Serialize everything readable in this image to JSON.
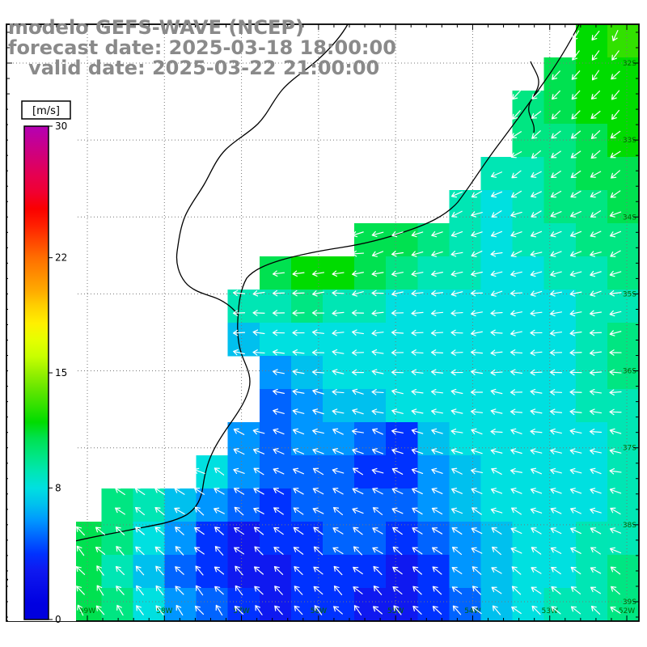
{
  "header": {
    "title": "modelo GEFS-WAVE (NCEP)",
    "forecast_line": "forecast date: 2025-03-18 18:00:00",
    "valid_line": "   valid date: 2025-03-22 21:00:00",
    "text_color": "#8a8a8a"
  },
  "colorbar": {
    "label": "[m/s]",
    "min": 0,
    "max": 30,
    "tick_values": [
      30,
      22,
      15,
      8,
      0
    ],
    "stops": [
      [
        30,
        "#b400b4"
      ],
      [
        28.5,
        "#cd0082"
      ],
      [
        27,
        "#e60050"
      ],
      [
        26,
        "#f00032"
      ],
      [
        25,
        "#fa0000"
      ],
      [
        24,
        "#ff1e00"
      ],
      [
        23,
        "#ff4600"
      ],
      [
        22,
        "#ff6e00"
      ],
      [
        21,
        "#ff8c00"
      ],
      [
        20,
        "#ffaa00"
      ],
      [
        19,
        "#ffd200"
      ],
      [
        18,
        "#fff000"
      ],
      [
        17,
        "#e6ff00"
      ],
      [
        16,
        "#c8ff00"
      ],
      [
        15,
        "#96f000"
      ],
      [
        14,
        "#64e600"
      ],
      [
        13,
        "#32e100"
      ],
      [
        12,
        "#00dc00"
      ],
      [
        11,
        "#00e150"
      ],
      [
        10,
        "#00e682"
      ],
      [
        9,
        "#00e6b4"
      ],
      [
        8,
        "#00e0e0"
      ],
      [
        7,
        "#00c0ee"
      ],
      [
        6,
        "#0096ff"
      ],
      [
        5,
        "#0064ff"
      ],
      [
        4,
        "#0032ff"
      ],
      [
        3,
        "#0f19f0"
      ],
      [
        1,
        "#0000e1"
      ],
      [
        0,
        "#0000dc"
      ]
    ]
  },
  "axes": {
    "lat_labels": [
      "32S",
      "33S",
      "34S",
      "35S",
      "36S",
      "37S",
      "38S",
      "39S"
    ],
    "lon_labels": [
      "59W",
      "58W",
      "57W",
      "56W",
      "55W",
      "54W",
      "53W",
      "52W"
    ],
    "label_color": "#006600"
  },
  "chart_data": {
    "type": "heatmap",
    "title": "modelo GEFS-WAVE (NCEP)",
    "field": "wind speed with direction arrows",
    "units": "m/s",
    "value_range": [
      0,
      30
    ],
    "grid_cols": 20,
    "grid_rows": 18,
    "values": [
      [
        null,
        null,
        null,
        null,
        null,
        null,
        null,
        null,
        null,
        null,
        null,
        null,
        null,
        null,
        null,
        null,
        null,
        null,
        12,
        13
      ],
      [
        null,
        null,
        null,
        null,
        null,
        null,
        null,
        null,
        null,
        null,
        null,
        null,
        null,
        null,
        null,
        null,
        null,
        11,
        12,
        12
      ],
      [
        null,
        null,
        null,
        null,
        null,
        null,
        null,
        null,
        null,
        null,
        null,
        null,
        null,
        null,
        null,
        null,
        10,
        11,
        12,
        12
      ],
      [
        null,
        null,
        null,
        null,
        null,
        null,
        null,
        null,
        null,
        null,
        null,
        null,
        null,
        null,
        null,
        null,
        10,
        10,
        11,
        12
      ],
      [
        null,
        null,
        null,
        null,
        null,
        null,
        null,
        null,
        null,
        null,
        null,
        null,
        null,
        null,
        null,
        9,
        9,
        10,
        11,
        11
      ],
      [
        null,
        null,
        null,
        null,
        null,
        null,
        null,
        null,
        null,
        null,
        null,
        null,
        null,
        null,
        9,
        8,
        9,
        10,
        10,
        11
      ],
      [
        null,
        null,
        null,
        null,
        null,
        null,
        null,
        null,
        null,
        null,
        null,
        11,
        11,
        10,
        9,
        8,
        9,
        9,
        10,
        10
      ],
      [
        null,
        null,
        null,
        null,
        null,
        null,
        null,
        null,
        11,
        12,
        12,
        11,
        10,
        9,
        9,
        8,
        8,
        9,
        9,
        10
      ],
      [
        null,
        null,
        null,
        null,
        null,
        null,
        null,
        9,
        9,
        10,
        9,
        9,
        8,
        8,
        8,
        8,
        8,
        8,
        9,
        9
      ],
      [
        null,
        null,
        null,
        null,
        null,
        null,
        null,
        7,
        8,
        8,
        8,
        8,
        8,
        8,
        8,
        8,
        8,
        8,
        9,
        10
      ],
      [
        null,
        null,
        null,
        null,
        null,
        null,
        null,
        null,
        6,
        7,
        8,
        8,
        8,
        8,
        8,
        8,
        8,
        8,
        9,
        10
      ],
      [
        null,
        null,
        null,
        null,
        null,
        null,
        null,
        null,
        5,
        6,
        7,
        7,
        8,
        8,
        8,
        8,
        8,
        8,
        9,
        9
      ],
      [
        null,
        null,
        null,
        null,
        null,
        null,
        null,
        6,
        5,
        6,
        6,
        5,
        4,
        7,
        8,
        8,
        8,
        8,
        8,
        9
      ],
      [
        null,
        null,
        null,
        null,
        null,
        null,
        8,
        6,
        5,
        5,
        5,
        4,
        4,
        6,
        7,
        8,
        8,
        8,
        8,
        9
      ],
      [
        null,
        null,
        null,
        10,
        9,
        7,
        6,
        5,
        4,
        5,
        5,
        5,
        5,
        6,
        7,
        8,
        8,
        8,
        8,
        9
      ],
      [
        null,
        null,
        11,
        10,
        8,
        6,
        4,
        3,
        4,
        4,
        5,
        5,
        4,
        5,
        6,
        7,
        8,
        8,
        9,
        9
      ],
      [
        null,
        11,
        11,
        9,
        7,
        5,
        4,
        3,
        3,
        4,
        4,
        4,
        3,
        4,
        6,
        7,
        8,
        8,
        9,
        10
      ],
      [
        null,
        12,
        11,
        10,
        8,
        6,
        5,
        4,
        3,
        4,
        4,
        3,
        3,
        4,
        5,
        7,
        8,
        9,
        9,
        10
      ]
    ],
    "speed_colors": {
      "3": "#0f19f0",
      "4": "#0032ff",
      "5": "#0064ff",
      "6": "#0096ff",
      "7": "#00c0ee",
      "8": "#00e0e0",
      "9": "#00e6b4",
      "10": "#00e682",
      "11": "#00e150",
      "12": "#00dc00",
      "13": "#32e100"
    },
    "arrow_color": "#ffffff",
    "land_color": "#ffffff",
    "arrow_direction_deg": [
      [
        140,
        137,
        133,
        130,
        127,
        123,
        120
      ],
      [
        160,
        157,
        153,
        150,
        147,
        143,
        140
      ],
      [
        180,
        177,
        173,
        170,
        167,
        163,
        160
      ],
      [
        200,
        197,
        193,
        190,
        187,
        183,
        180
      ],
      [
        220,
        217,
        213,
        210,
        207,
        203,
        200
      ],
      [
        240,
        237,
        233,
        230,
        227,
        223,
        220
      ]
    ]
  },
  "map": {
    "coast_color": "#000000",
    "grid_color": "#777777",
    "coastline_paths": [
      "M 716 30 C 702 58 684 86 668 108 C 650 134 632 158 614 182 C 596 206 580 232 566 250 C 550 268 526 278 502 286 C 474 296 448 302 422 306 C 396 310 366 316 346 322 C 330 327 314 333 305 344 C 297 358 295 376 294 396 C 293 414 295 430 301 444 C 307 458 311 468 308 480 C 305 493 297 506 288 519 C 278 533 269 546 263 559 C 256 573 253 587 251 601 C 249 617 243 629 230 637 C 213 646 193 649 172 653 C 148 658 118 663 93 669 C 68 675 44 686 27 701 L 8 718",
      "M 430 30 C 421 46 408 60 395 72 C 379 87 361 97 349 111 C 337 125 331 141 319 153 C 307 165 291 173 279 185 C 267 197 261 213 253 227 C 245 241 235 253 229 267 C 223 281 221 297 219 311 C 217 325 221 339 229 349 C 237 359 251 363 263 367 C 275 371 287 379 295 390",
      "M 656 76 C 661 88 669 96 665 108 C 661 120 652 126 654 138 C 656 148 662 154 660 164"
    ]
  }
}
